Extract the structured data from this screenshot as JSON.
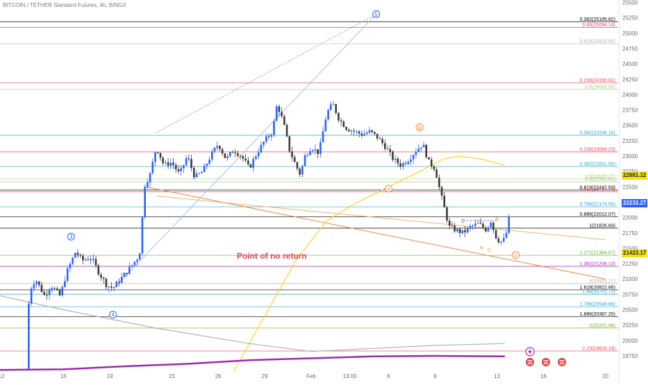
{
  "header": {
    "title": "BITCOIN / TETHER Standard Futures, 4h, BINGX"
  },
  "annotation": {
    "text": "Point of no return"
  },
  "current_prices": [
    {
      "label": "22681.12",
      "value": 22681.12,
      "bg": "#f2e11a",
      "fg": "#1f1f1f"
    },
    {
      "label": "22233.27",
      "value": 22233.27,
      "bg": "#2962ff",
      "fg": "#ffffff"
    },
    {
      "label": "21423.17",
      "value": 21423.17,
      "bg": "#f2e11a",
      "fg": "#1f1f1f"
    }
  ],
  "event_icons": [
    "lightning-icon",
    "flag-icon",
    "flag-icon",
    "flag-icon"
  ],
  "colors": {
    "up": "#2962ff",
    "down": "#3a3a3a",
    "orange": "#f0833a",
    "yellow": "#ffd21f",
    "purple": "#9c27b0",
    "grey_ma": "#b0b0b0"
  },
  "chart_data": {
    "type": "candlestick",
    "title": "BITCOIN / TETHER Standard Futures, 4h, BINGX",
    "y_axis": {
      "range": [
        19500,
        25600
      ],
      "ticks": [
        19750,
        20000,
        20250,
        20500,
        20750,
        21000,
        21250,
        21500,
        21750,
        22000,
        22250,
        22500,
        22750,
        23000,
        23250,
        23500,
        23750,
        24000,
        24250,
        24500,
        24750,
        25000,
        25250,
        25500
      ]
    },
    "x_axis": {
      "labels": [
        {
          "label": "12",
          "day": 12
        },
        {
          "label": "16",
          "day": 16
        },
        {
          "label": "19",
          "day": 19
        },
        {
          "label": "23",
          "day": 23
        },
        {
          "label": "26",
          "day": 26
        },
        {
          "label": "29",
          "day": 29
        },
        {
          "label": "Feb",
          "day": 32
        },
        {
          "label": "13:00",
          "day": 34.5
        },
        {
          "label": "6",
          "day": 37
        },
        {
          "label": "9",
          "day": 40
        },
        {
          "label": "13",
          "day": 44
        },
        {
          "label": "16",
          "day": 47
        },
        {
          "label": "20",
          "day": 51
        }
      ]
    },
    "price_path": [
      [
        13.6,
        19540
      ],
      [
        13.65,
        19700
      ],
      [
        13.7,
        20200
      ],
      [
        13.8,
        20800
      ],
      [
        14.2,
        21000
      ],
      [
        14.8,
        20720
      ],
      [
        15.2,
        20900
      ],
      [
        15.8,
        20720
      ],
      [
        16.2,
        21100
      ],
      [
        16.8,
        21450
      ],
      [
        17.2,
        21300
      ],
      [
        17.8,
        21350
      ],
      [
        18.3,
        21100
      ],
      [
        18.8,
        20900
      ],
      [
        19.2,
        20850
      ],
      [
        19.7,
        21000
      ],
      [
        20.2,
        21150
      ],
      [
        20.8,
        21350
      ],
      [
        21.0,
        21500
      ],
      [
        21.2,
        22500
      ],
      [
        21.6,
        22700
      ],
      [
        22.0,
        23150
      ],
      [
        22.5,
        22850
      ],
      [
        23.0,
        22900
      ],
      [
        23.5,
        22700
      ],
      [
        24.0,
        23000
      ],
      [
        24.5,
        22650
      ],
      [
        25.0,
        22750
      ],
      [
        25.5,
        23000
      ],
      [
        26.0,
        23200
      ],
      [
        26.5,
        22950
      ],
      [
        27.0,
        23100
      ],
      [
        27.5,
        23000
      ],
      [
        28.0,
        22800
      ],
      [
        28.5,
        23050
      ],
      [
        29.0,
        23250
      ],
      [
        29.5,
        23400
      ],
      [
        29.8,
        23850
      ],
      [
        30.2,
        23550
      ],
      [
        30.6,
        23100
      ],
      [
        31.0,
        22850
      ],
      [
        31.3,
        22700
      ],
      [
        31.6,
        23000
      ],
      [
        32.0,
        23150
      ],
      [
        32.5,
        23050
      ],
      [
        33.0,
        23700
      ],
      [
        33.4,
        23850
      ],
      [
        33.8,
        23600
      ],
      [
        34.3,
        23450
      ],
      [
        34.8,
        23400
      ],
      [
        35.3,
        23350
      ],
      [
        35.8,
        23400
      ],
      [
        36.3,
        23300
      ],
      [
        36.8,
        23150
      ],
      [
        37.3,
        22950
      ],
      [
        37.8,
        22850
      ],
      [
        38.3,
        22950
      ],
      [
        38.8,
        23100
      ],
      [
        39.2,
        23200
      ],
      [
        39.6,
        22900
      ],
      [
        40.0,
        22800
      ],
      [
        40.3,
        22450
      ],
      [
        40.6,
        22150
      ],
      [
        40.9,
        21850
      ],
      [
        41.3,
        21800
      ],
      [
        41.8,
        21750
      ],
      [
        42.3,
        21850
      ],
      [
        42.8,
        21900
      ],
      [
        43.3,
        21800
      ],
      [
        43.6,
        21950
      ],
      [
        43.9,
        21700
      ],
      [
        44.2,
        21600
      ],
      [
        44.5,
        21650
      ],
      [
        44.7,
        21850
      ],
      [
        44.9,
        22233
      ]
    ],
    "moving_averages": [
      {
        "color": "yellow",
        "points": [
          [
            27.0,
            19500
          ],
          [
            29.0,
            20400
          ],
          [
            31.0,
            21300
          ],
          [
            33.0,
            21950
          ],
          [
            35.0,
            22250
          ],
          [
            37.0,
            22500
          ],
          [
            39.0,
            22750
          ],
          [
            40.5,
            22950
          ],
          [
            41.5,
            23000
          ],
          [
            43.0,
            22950
          ],
          [
            44.5,
            22850
          ]
        ]
      },
      {
        "color": "grey_ma",
        "points": [
          [
            11.5,
            20750
          ],
          [
            16.0,
            20500
          ],
          [
            22.0,
            20200
          ],
          [
            28.0,
            19950
          ],
          [
            32.0,
            19820
          ],
          [
            36.0,
            19870
          ],
          [
            40.0,
            19920
          ],
          [
            44.5,
            19950
          ]
        ]
      },
      {
        "color": "purple",
        "points": [
          [
            11.5,
            19520
          ],
          [
            16.0,
            19530
          ],
          [
            20.0,
            19580
          ],
          [
            24.0,
            19620
          ],
          [
            28.0,
            19680
          ],
          [
            32.0,
            19710
          ],
          [
            36.0,
            19740
          ],
          [
            40.0,
            19750
          ],
          [
            44.5,
            19740
          ]
        ]
      }
    ],
    "fib_levels": [
      {
        "label": "0.382(25185.82)",
        "value": 25185.82,
        "color": "#000000"
      },
      {
        "label": "0.66(25094.14)",
        "value": 25094.14,
        "color": "#e2465b"
      },
      {
        "label": "0.618(24828.85)",
        "value": 24828.85,
        "color": "#b3b3b3"
      },
      {
        "label": "0.236(24190.61)",
        "value": 24190.61,
        "color": "#e2465b"
      },
      {
        "label": "0.5(24083.50)",
        "value": 24083.5,
        "color": "#a5c97b"
      },
      {
        "label": "0.382(23338.16)",
        "value": 23338.16,
        "color": "#26a6c8"
      },
      {
        "label": "0.236(23068.23)",
        "value": 23068.23,
        "color": "#e2465b"
      },
      {
        "label": "0.382(22831.00)",
        "value": 22831.0,
        "color": "#26a6c8"
      },
      {
        "label": "0.5(22629.27)",
        "value": 22629.27,
        "color": "#a5c97b"
      },
      {
        "label": "0.5(22581.91)",
        "value": 22581.91,
        "color": "#a5c97b"
      },
      {
        "label": "0.618(22447.53)",
        "value": 22447.53,
        "color": "#000000"
      },
      {
        "label": "0.618(22417.75)",
        "value": 22417.75,
        "color": "#e2465b"
      },
      {
        "label": "0.786(22174.55)",
        "value": 22174.55,
        "color": "#26a6c8"
      },
      {
        "label": "0.886(22012.07)",
        "value": 22012.07,
        "color": "#000000"
      },
      {
        "label": "1(21826.83)",
        "value": 21826.83,
        "color": "#000000"
      },
      {
        "label": "1.272(21384.87)",
        "value": 21384.87,
        "color": "#6aab2e"
      },
      {
        "label": "1.382(21206.13)",
        "value": 21206.13,
        "color": "#9c27b0"
      },
      {
        "label": "0(20925.27)",
        "value": 20925.27,
        "color": "#b3b3b3"
      },
      {
        "label": "1.618(20822.66)",
        "value": 20822.66,
        "color": "#000000"
      },
      {
        "label": "1.66(20751.72)",
        "value": 20751.72,
        "color": "#26a6c8"
      },
      {
        "label": "1.786(20549.68)",
        "value": 20549.68,
        "color": "#26a6c8"
      },
      {
        "label": "1.886(20387.20)",
        "value": 20387.2,
        "color": "#000000"
      },
      {
        "label": "2(20201.96)",
        "value": 20201.96,
        "color": "#6aab2e"
      },
      {
        "label": "2.23(19828.24)",
        "value": 19828.24,
        "color": "#e2465b"
      }
    ],
    "trend_lines": [
      {
        "from": [
          21.3,
          22500
        ],
        "to": [
          51.0,
          21000
        ],
        "color": "#f0833a",
        "width": 1
      },
      {
        "from": [
          22.0,
          22350
        ],
        "to": [
          51.0,
          21640
        ],
        "color": "#f0b070",
        "width": 1
      },
      {
        "from": [
          19.0,
          20780
        ],
        "to": [
          36.2,
          25310
        ],
        "color": "#9fc3e8",
        "width": 1
      },
      {
        "from": [
          22.0,
          23380
        ],
        "to": [
          36.2,
          25310
        ],
        "color": "#9a9a9a",
        "width": 1,
        "dash": true
      }
    ],
    "wave_labels": [
      {
        "label": "3",
        "day": 16.5,
        "value": 21690,
        "kind": "circle",
        "color": "#2962ff"
      },
      {
        "label": "4",
        "day": 19.2,
        "value": 20420,
        "kind": "circle",
        "color": "#2962ff"
      },
      {
        "label": "5",
        "day": 36.2,
        "value": 25310,
        "kind": "circle",
        "color": "#2962ff"
      },
      {
        "label": "a",
        "day": 37.0,
        "value": 22470,
        "kind": "circle",
        "color": "#f0833a"
      },
      {
        "label": "b",
        "day": 39.0,
        "value": 23470,
        "kind": "circle",
        "color": "#f0833a"
      },
      {
        "label": "c",
        "day": 45.2,
        "value": 21390,
        "kind": "circle",
        "color": "#f0833a"
      },
      {
        "label": "C",
        "day": 41.8,
        "value": 21950,
        "kind": "text",
        "color": "#2962ff"
      },
      {
        "label": "B",
        "day": 44.0,
        "value": 21980,
        "kind": "text",
        "color": "#f0833a"
      },
      {
        "label": "A",
        "day": 43.0,
        "value": 21520,
        "kind": "text",
        "color": "#f0833a"
      },
      {
        "label": "C",
        "day": 43.5,
        "value": 21480,
        "kind": "text",
        "color": "#f0833a"
      }
    ],
    "marker_line": {
      "day": 41.8,
      "value": 21950,
      "to_day": 44.0,
      "color": "#555555"
    }
  }
}
